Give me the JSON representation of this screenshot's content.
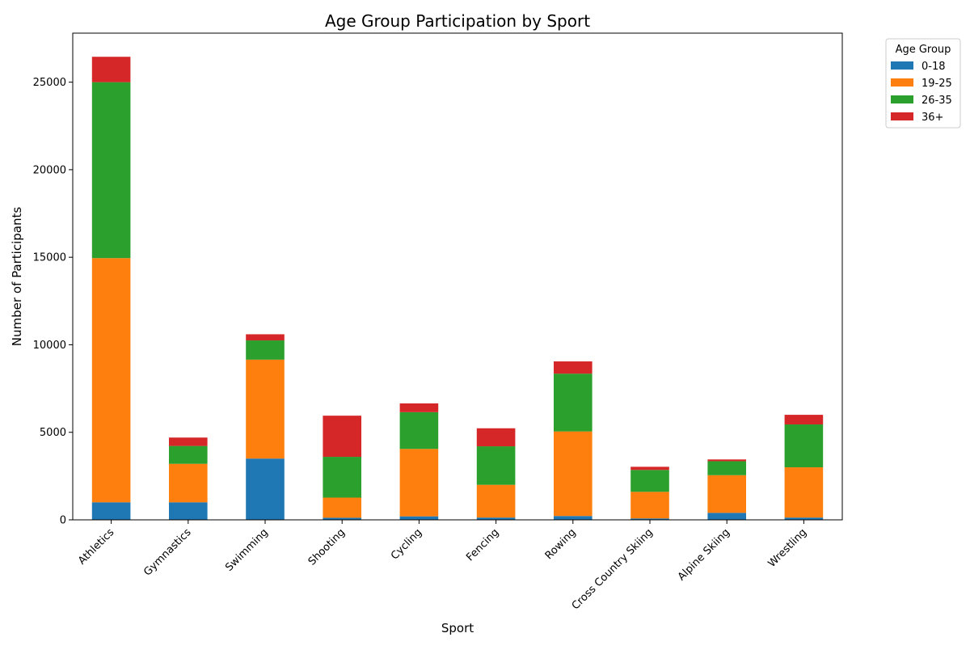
{
  "chart_data": {
    "type": "bar",
    "stacked": true,
    "title": "Age Group Participation by Sport",
    "xlabel": "Sport",
    "ylabel": "Number of Participants",
    "ylim": [
      0,
      27800
    ],
    "yticks": [
      0,
      5000,
      10000,
      15000,
      20000,
      25000
    ],
    "grid": false,
    "legend": {
      "title": "Age Group",
      "placement": "outside-top-right"
    },
    "categories": [
      "Athletics",
      "Gymnastics",
      "Swimming",
      "Shooting",
      "Cycling",
      "Fencing",
      "Rowing",
      "Cross Country Skiing",
      "Alpine Skiing",
      "Wrestling"
    ],
    "series": [
      {
        "name": "0-18",
        "color": "#1f77b4",
        "values": [
          1000,
          1000,
          3500,
          120,
          200,
          130,
          220,
          80,
          400,
          130
        ]
      },
      {
        "name": "19-25",
        "color": "#ff7f0e",
        "values": [
          13950,
          2200,
          5650,
          1150,
          3850,
          1870,
          4830,
          1520,
          2150,
          2870
        ]
      },
      {
        "name": "26-35",
        "color": "#2ca02c",
        "values": [
          10050,
          1020,
          1100,
          2330,
          2100,
          2200,
          3300,
          1250,
          800,
          2450
        ]
      },
      {
        "name": "36+",
        "color": "#d62728",
        "values": [
          1450,
          480,
          350,
          2350,
          500,
          1030,
          700,
          180,
          100,
          550
        ]
      }
    ]
  }
}
